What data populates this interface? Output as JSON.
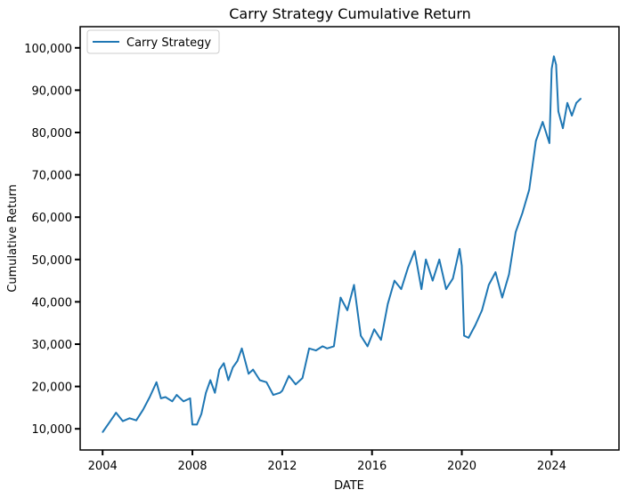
{
  "chart_data": {
    "type": "line",
    "title": "Carry Strategy Cumulative Return",
    "xlabel": "DATE",
    "ylabel": "Cumulative Return",
    "xlim": [
      2003.0,
      2027.0
    ],
    "ylim": [
      5000,
      105000
    ],
    "x_ticks": [
      2004,
      2008,
      2012,
      2016,
      2020,
      2024
    ],
    "y_ticks": [
      10000,
      20000,
      30000,
      40000,
      50000,
      60000,
      70000,
      80000,
      90000,
      100000
    ],
    "y_tick_labels": [
      "10,000",
      "20,000",
      "30,000",
      "40,000",
      "50,000",
      "60,000",
      "70,000",
      "80,000",
      "90,000",
      "100,000"
    ],
    "x_tick_labels": [
      "2004",
      "2008",
      "2012",
      "2016",
      "2020",
      "2024"
    ],
    "legend_position": "top-left",
    "grid": false,
    "series": [
      {
        "name": "Carry Strategy",
        "color": "#1f77b4",
        "x": [
          2004.0,
          2004.3,
          2004.6,
          2004.9,
          2005.2,
          2005.5,
          2005.8,
          2006.1,
          2006.4,
          2006.6,
          2006.8,
          2007.1,
          2007.3,
          2007.6,
          2007.9,
          2008.0,
          2008.2,
          2008.4,
          2008.6,
          2008.8,
          2009.0,
          2009.2,
          2009.4,
          2009.6,
          2009.8,
          2010.0,
          2010.2,
          2010.5,
          2010.7,
          2011.0,
          2011.3,
          2011.6,
          2011.9,
          2012.0,
          2012.3,
          2012.6,
          2012.9,
          2013.2,
          2013.5,
          2013.8,
          2014.0,
          2014.3,
          2014.6,
          2014.9,
          2015.2,
          2015.5,
          2015.8,
          2016.1,
          2016.4,
          2016.7,
          2017.0,
          2017.3,
          2017.6,
          2017.9,
          2018.2,
          2018.4,
          2018.7,
          2019.0,
          2019.3,
          2019.6,
          2019.9,
          2020.0,
          2020.1,
          2020.3,
          2020.6,
          2020.9,
          2021.2,
          2021.5,
          2021.8,
          2022.1,
          2022.4,
          2022.7,
          2023.0,
          2023.3,
          2023.6,
          2023.9,
          2024.0,
          2024.1,
          2024.2,
          2024.3,
          2024.5,
          2024.7,
          2024.9,
          2025.1,
          2025.3
        ],
        "values": [
          9200,
          11500,
          13800,
          11800,
          12500,
          12000,
          14500,
          17500,
          21000,
          17200,
          17500,
          16500,
          18000,
          16500,
          17200,
          11000,
          11000,
          13500,
          18500,
          21500,
          18500,
          24000,
          25500,
          21500,
          24500,
          26000,
          29000,
          23000,
          24000,
          21500,
          21000,
          18000,
          18500,
          19000,
          22500,
          20500,
          22000,
          29000,
          28500,
          29500,
          29000,
          29500,
          41000,
          38000,
          44000,
          32000,
          29500,
          33500,
          31000,
          39500,
          45000,
          43000,
          48000,
          52000,
          43000,
          50000,
          45000,
          50000,
          43000,
          45500,
          52500,
          48500,
          32000,
          31500,
          34500,
          38000,
          44000,
          47000,
          41000,
          46500,
          56500,
          61000,
          66500,
          78000,
          82500,
          77500,
          95000,
          98000,
          96000,
          85000,
          81000,
          87000,
          84000,
          87000,
          88000
        ]
      }
    ]
  }
}
